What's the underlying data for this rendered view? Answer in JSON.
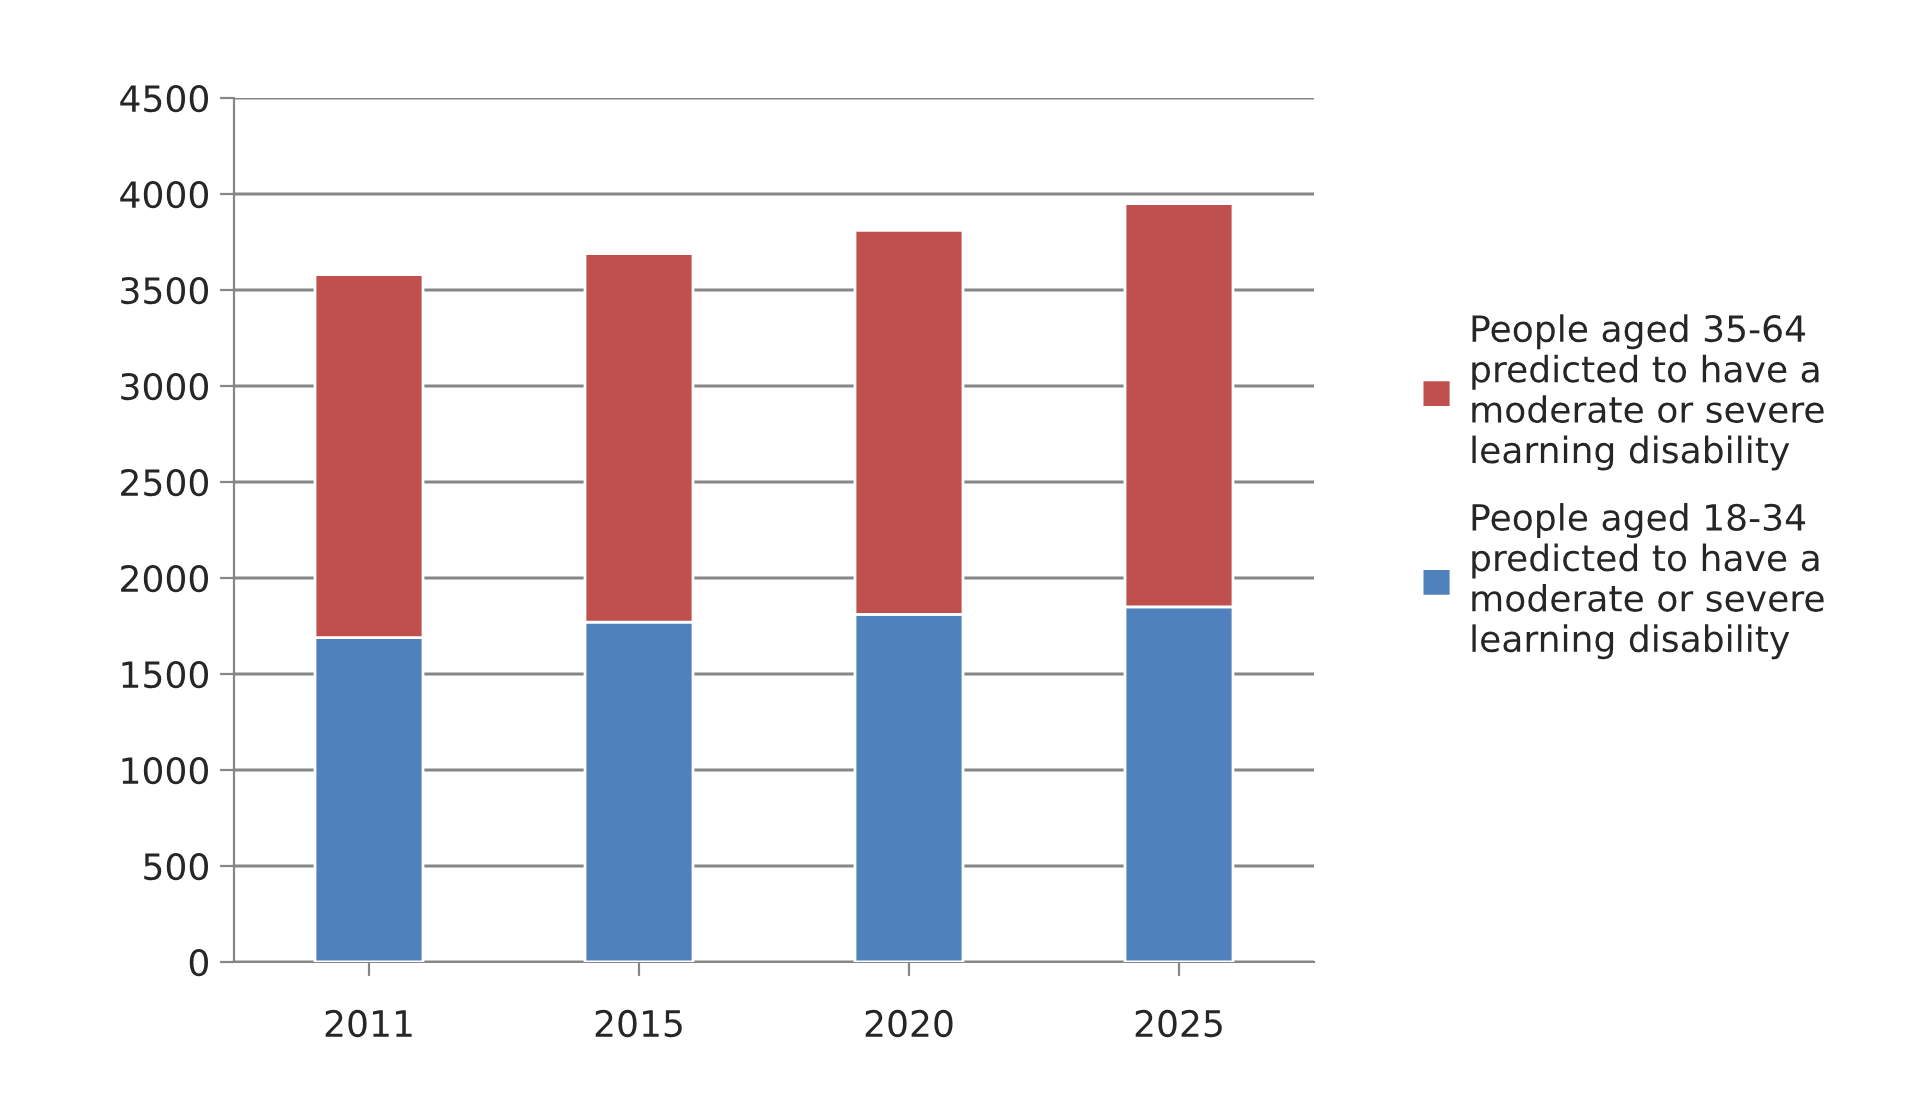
{
  "chart_data": {
    "type": "bar",
    "stacked": true,
    "categories": [
      "2011",
      "2015",
      "2020",
      "2025"
    ],
    "series": [
      {
        "name": "People aged 18-34\npredicted to have a\nmoderate or severe\nlearning disability",
        "color": "#4f81bd",
        "values": [
          1690,
          1770,
          1810,
          1850
        ]
      },
      {
        "name": "People aged 35-64\npredicted to have a\nmoderate or severe\nlearning disability",
        "color": "#c0504d",
        "values": [
          1890,
          1920,
          2000,
          2100
        ]
      }
    ],
    "ylim": [
      0,
      4500
    ],
    "yticks": [
      0,
      500,
      1000,
      1500,
      2000,
      2500,
      3000,
      3500,
      4000,
      4500
    ],
    "grid": "y",
    "legend": "right"
  }
}
